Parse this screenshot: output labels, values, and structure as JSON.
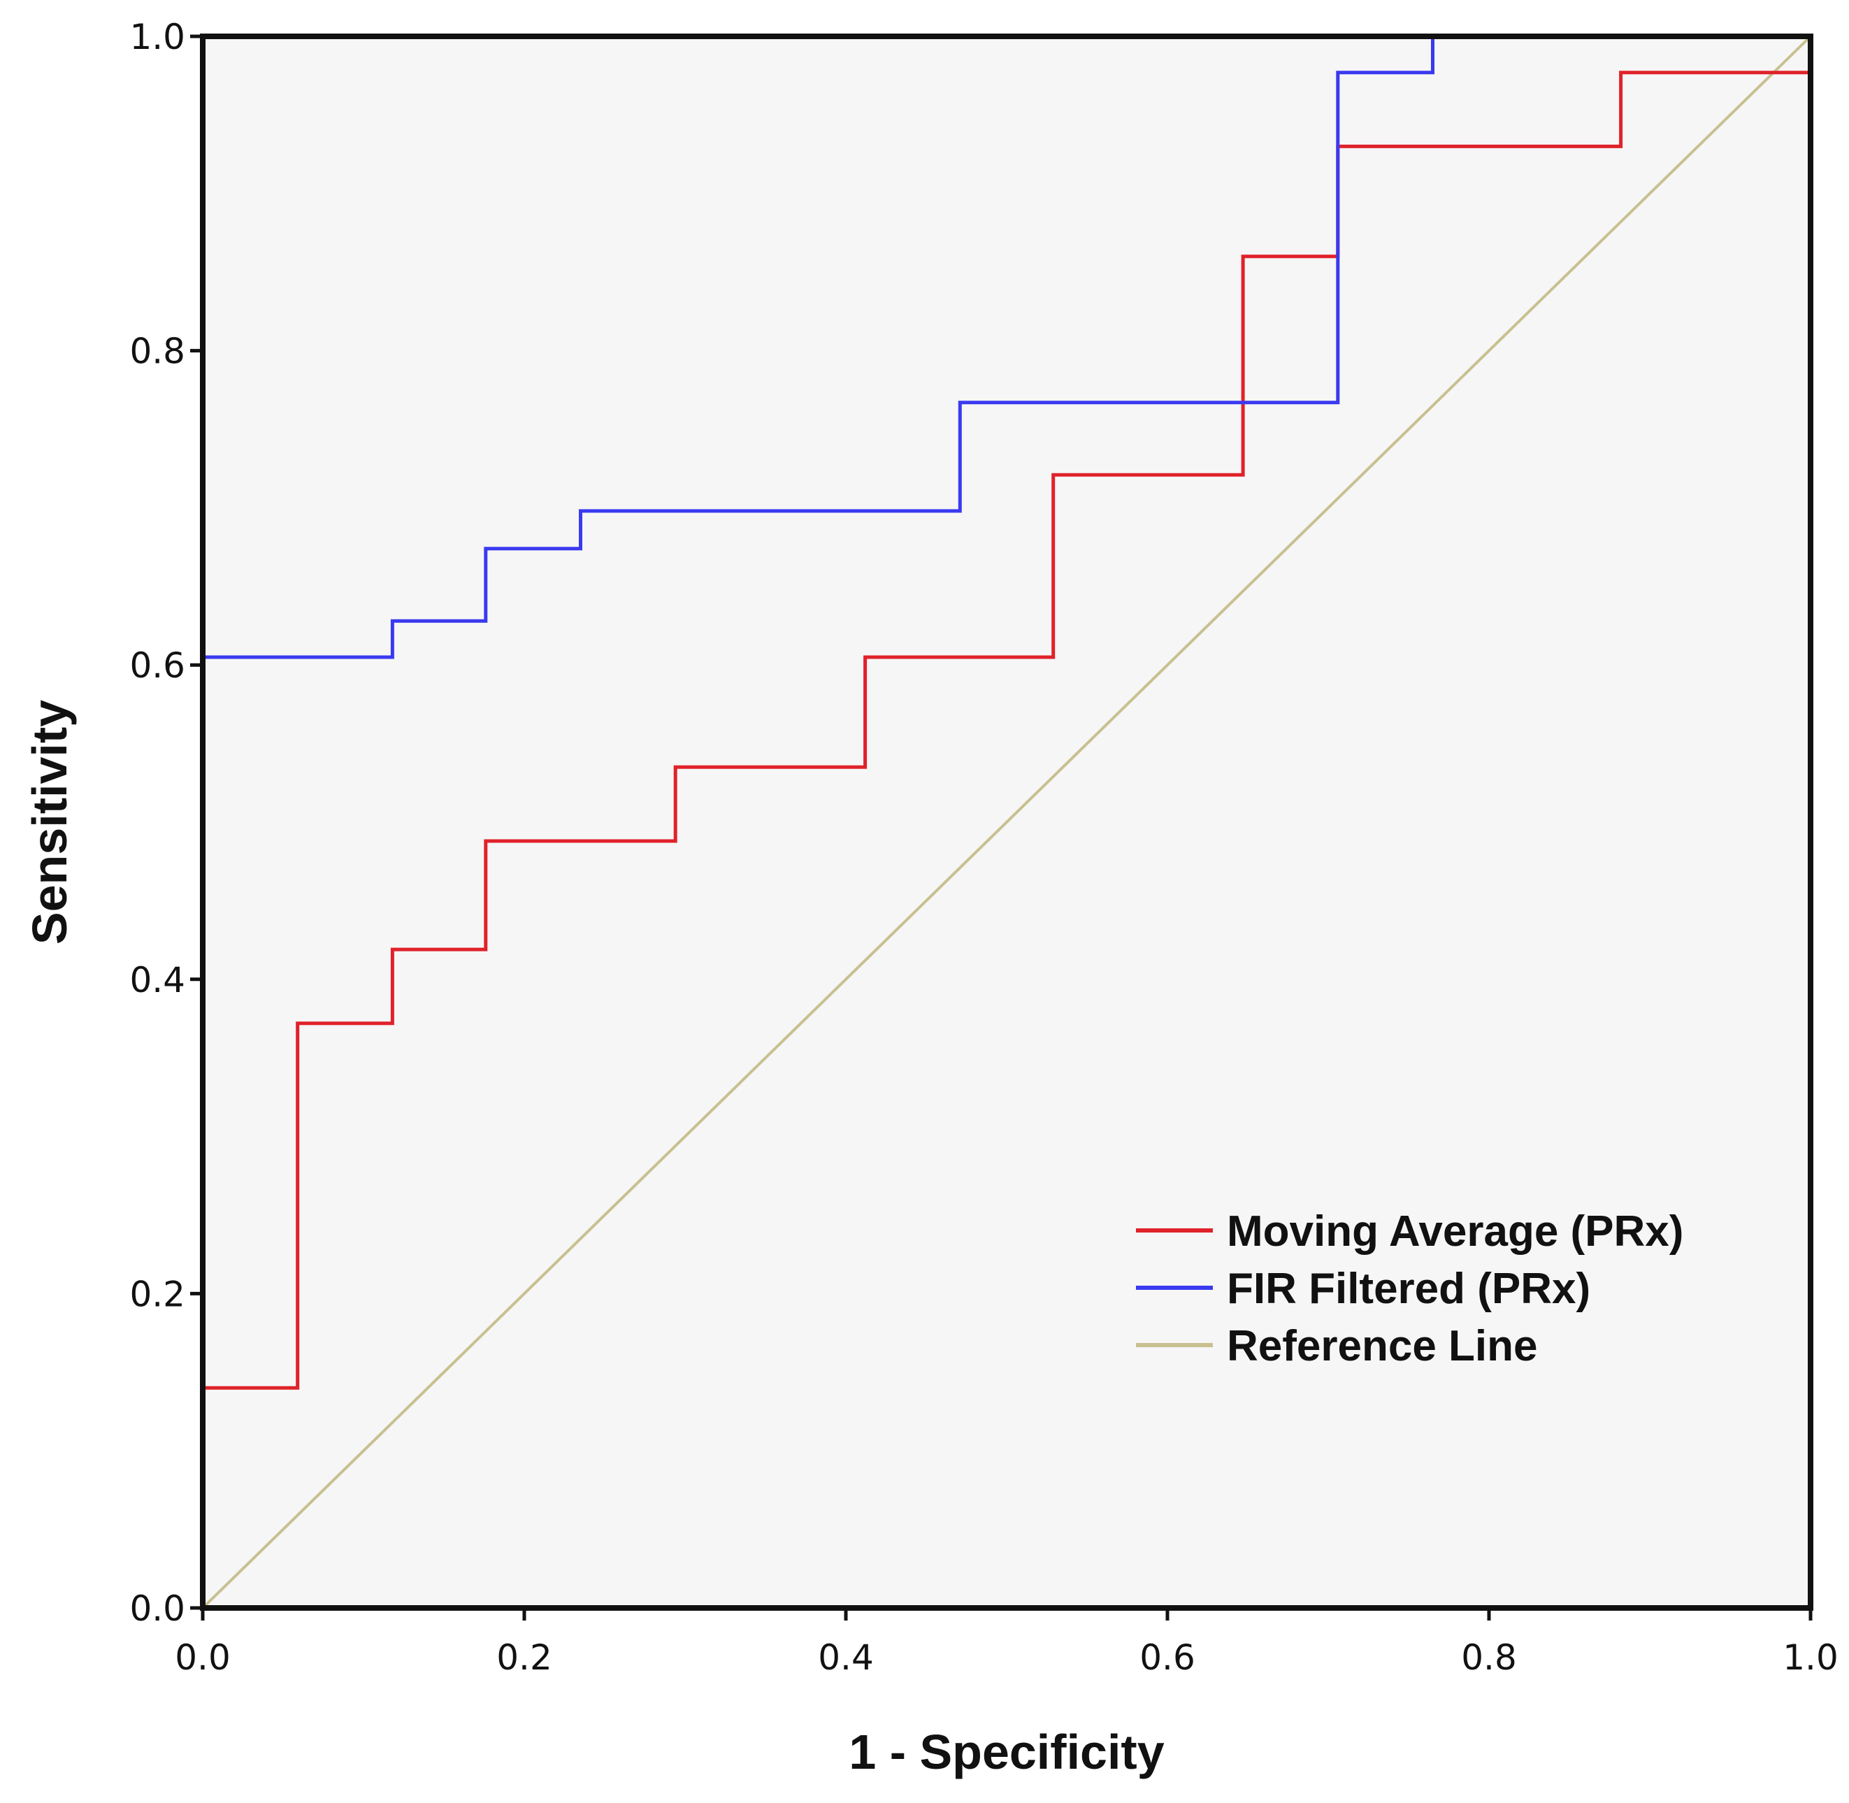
{
  "chart_data": {
    "type": "line",
    "xlabel": "1 - Specificity",
    "ylabel": "Sensitivity",
    "xlim": [
      0,
      1
    ],
    "ylim": [
      0,
      1
    ],
    "x_ticks": [
      "0.0",
      "0.2",
      "0.4",
      "0.6",
      "0.8",
      "1.0"
    ],
    "y_ticks": [
      "0.0",
      "0.2",
      "0.4",
      "0.6",
      "0.8",
      "1.0"
    ],
    "grid": false,
    "legend_position": "bottom-right",
    "series": [
      {
        "name": "Moving Average (PRx)",
        "color": "#e0222a",
        "step": true,
        "x": [
          0,
          0,
          0.059,
          0.059,
          0.118,
          0.118,
          0.176,
          0.176,
          0.294,
          0.294,
          0.412,
          0.412,
          0.529,
          0.529,
          0.647,
          0.647,
          0.706,
          0.706,
          0.882,
          0.882,
          1.0,
          1.0
        ],
        "y": [
          0,
          0.14,
          0.14,
          0.372,
          0.372,
          0.419,
          0.419,
          0.488,
          0.488,
          0.535,
          0.535,
          0.605,
          0.605,
          0.721,
          0.721,
          0.86,
          0.86,
          0.93,
          0.93,
          0.977,
          0.977,
          1.0
        ]
      },
      {
        "name": "FIR Filtered (PRx)",
        "color": "#3a3af0",
        "step": true,
        "x": [
          0,
          0,
          0.118,
          0.118,
          0.176,
          0.176,
          0.235,
          0.235,
          0.471,
          0.471,
          0.706,
          0.706,
          0.765,
          0.765,
          1.0
        ],
        "y": [
          0,
          0.605,
          0.605,
          0.628,
          0.628,
          0.674,
          0.674,
          0.698,
          0.698,
          0.767,
          0.767,
          0.977,
          0.977,
          1.0,
          1.0
        ]
      },
      {
        "name": "Reference Line",
        "color": "#c8c090",
        "step": false,
        "x": [
          0,
          1
        ],
        "y": [
          0,
          1
        ]
      }
    ]
  }
}
